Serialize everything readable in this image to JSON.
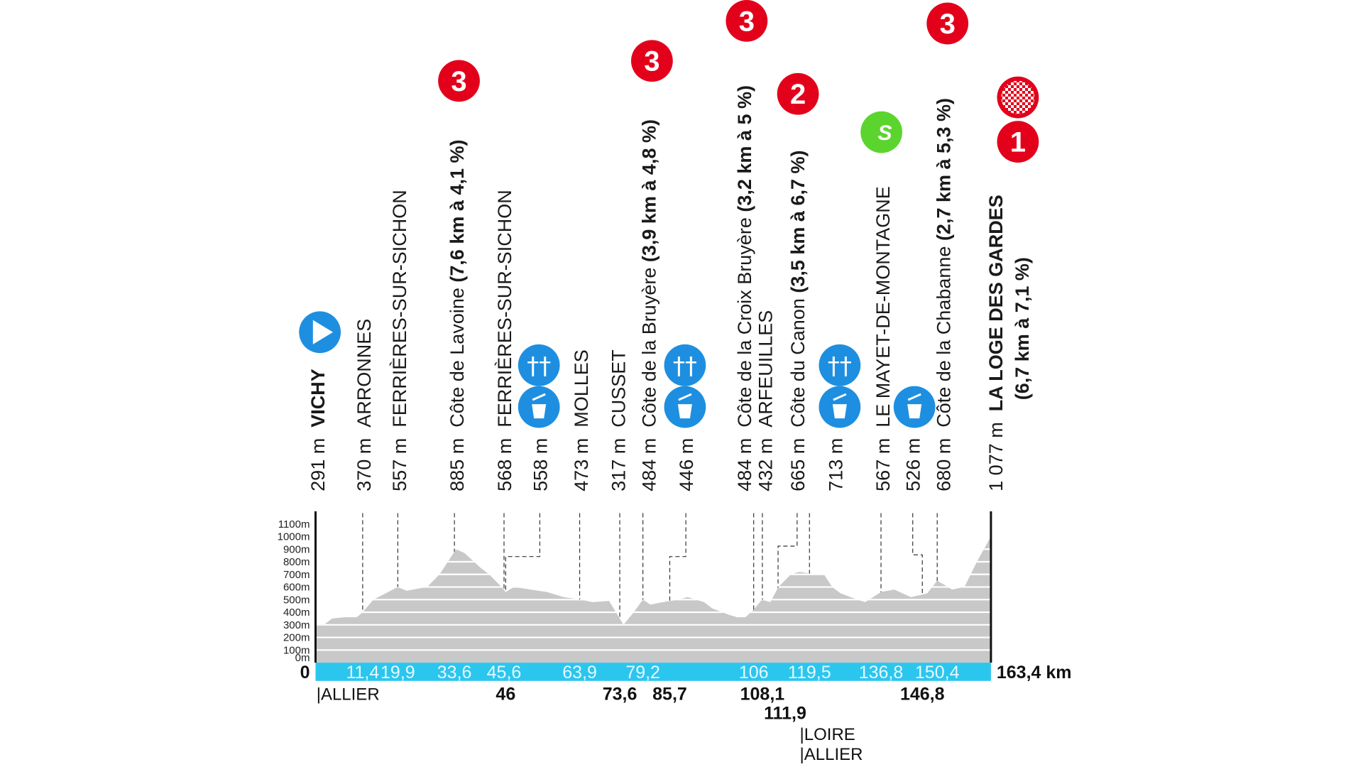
{
  "chart_data": {
    "type": "area",
    "title": "",
    "xlabel": "",
    "ylabel": "",
    "xlim": [
      0,
      163.4
    ],
    "ylim": [
      0,
      1100
    ],
    "y_ticks": [
      "0m",
      "100m",
      "200m",
      "300m",
      "400m",
      "500m",
      "600m",
      "700m",
      "800m",
      "900m",
      "1000m",
      "1100m"
    ],
    "grid": true,
    "colors": {
      "profile": "#c8c8c8",
      "band": "#2bc6ee",
      "kom": "#e3001b",
      "service": "#1e8fe0",
      "sprint": "#5bd52e"
    },
    "profile": {
      "km": [
        0,
        2,
        4,
        7,
        10,
        11.4,
        14,
        17,
        19.9,
        22,
        27,
        30,
        33,
        34,
        36,
        40,
        42,
        45,
        46,
        48,
        52,
        56,
        60,
        64,
        67,
        71,
        73.6,
        74.5,
        77,
        79.2,
        81,
        84,
        88,
        90,
        94,
        96,
        100,
        102,
        104,
        106,
        108,
        110,
        112,
        115,
        117,
        121,
        123,
        125,
        127,
        131,
        133,
        136.8,
        140,
        144,
        146.8,
        148,
        150.4,
        152,
        154,
        157,
        160,
        163.4
      ],
      "elevation_m": [
        300,
        300,
        350,
        360,
        360,
        400,
        500,
        550,
        600,
        570,
        600,
        700,
        850,
        900,
        870,
        750,
        700,
        600,
        560,
        600,
        580,
        560,
        520,
        500,
        480,
        490,
        350,
        300,
        400,
        500,
        460,
        480,
        500,
        520,
        480,
        430,
        380,
        360,
        360,
        420,
        500,
        480,
        600,
        700,
        720,
        700,
        700,
        600,
        550,
        500,
        480,
        560,
        580,
        520,
        540,
        550,
        650,
        620,
        580,
        600,
        800,
        1000
      ]
    },
    "start_km_label": "0",
    "end_km_label": "163,4 km",
    "km_band": [
      "11,4",
      "19,9",
      "33,6",
      "45,6",
      "63,9",
      "79,2",
      "106",
      "119,5",
      "136,8",
      "150,4"
    ],
    "km_band_values": [
      11.4,
      19.9,
      33.6,
      45.6,
      63.9,
      79.2,
      106,
      119.5,
      136.8,
      150.4
    ],
    "km_below": [
      {
        "label": "46",
        "km": 46,
        "row": 0
      },
      {
        "label": "73,6",
        "km": 73.6,
        "row": 0
      },
      {
        "label": "85,7",
        "km": 85.7,
        "row": 0
      },
      {
        "label": "108,1",
        "km": 108.1,
        "row": 0
      },
      {
        "label": "111,9",
        "km": 111.9,
        "row": 1
      },
      {
        "label": "146,8",
        "km": 146.8,
        "row": 0
      }
    ],
    "rivers": [
      {
        "label": "|ALLIER"
      },
      {
        "label": "|LOIRE"
      },
      {
        "label": "|ALLIER"
      }
    ],
    "points": [
      {
        "alt": "291 m",
        "name": "VICHY",
        "detail": "",
        "km": 0,
        "bold_name": true,
        "icons": [
          "start-icon"
        ]
      },
      {
        "alt": "370 m",
        "name": "ARRONNES",
        "detail": "",
        "km": 11.4
      },
      {
        "alt": "557 m",
        "name": "FERRIÈRES-SUR-SICHON",
        "detail": "",
        "km": 19.9
      },
      {
        "alt": "885 m",
        "name": "Côte de Lavoine",
        "detail": "(7,6 km à 4,1 %)",
        "km": 33.6,
        "icons": [
          "kom-3"
        ]
      },
      {
        "alt": "568 m",
        "name": "FERRIÈRES-SUR-SICHON",
        "detail": "",
        "km": 45.6
      },
      {
        "alt": "558 m",
        "name": "",
        "detail": "",
        "km": 46,
        "icons": [
          "feed-zone",
          "waste-zone"
        ]
      },
      {
        "alt": "473 m",
        "name": "MOLLES",
        "detail": "",
        "km": 63.9
      },
      {
        "alt": "317 m",
        "name": "CUSSET",
        "detail": "",
        "km": 73.6
      },
      {
        "alt": "484 m",
        "name": "Côte de la Bruyère",
        "detail": "(3,9 km à 4,8 %)",
        "km": 79.2,
        "icons": [
          "kom-3"
        ]
      },
      {
        "alt": "446 m",
        "name": "",
        "detail": "",
        "km": 85.7,
        "icons": [
          "feed-zone",
          "waste-zone"
        ]
      },
      {
        "alt": "484 m",
        "name": "Côte de la Croix Bruyère",
        "detail": "(3,2 km à 5 %)",
        "km": 106,
        "icons": [
          "kom-3"
        ]
      },
      {
        "alt": "432 m",
        "name": "ARFEUILLES",
        "detail": "",
        "km": 108.1
      },
      {
        "alt": "665 m",
        "name": "Côte du Canon",
        "detail": "(3,5 km à 6,7 %)",
        "km": 111.9,
        "icons": [
          "kom-2"
        ]
      },
      {
        "alt": "713 m",
        "name": "",
        "detail": "",
        "km": 119.5,
        "icons": [
          "feed-zone",
          "waste-zone"
        ]
      },
      {
        "alt": "567 m",
        "name": "LE MAYET-DE-MONTAGNE",
        "detail": "",
        "km": 136.8,
        "icons": [
          "sprint"
        ]
      },
      {
        "alt": "526 m",
        "name": "",
        "detail": "",
        "km": 146.8,
        "icons": [
          "waste-zone"
        ]
      },
      {
        "alt": "680 m",
        "name": "Côte de la Chabanne",
        "detail": "(2,7 km à 5,3 %)",
        "km": 150.4,
        "icons": [
          "kom-3"
        ]
      },
      {
        "alt": "1 077 m",
        "name": "LA LOGE DES GARDES",
        "detail": "(6,7 km à 7,1 %)",
        "km": 163.4,
        "bold_name": true,
        "icons": [
          "finish-icon",
          "kom-1"
        ]
      }
    ],
    "badges": [
      "3",
      "3",
      "3",
      "2",
      "3",
      "1",
      "S"
    ]
  }
}
